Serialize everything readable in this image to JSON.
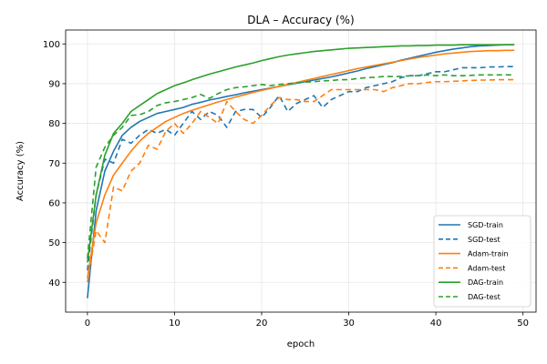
{
  "chart_data": {
    "type": "line",
    "title": "DLA – Accuracy (%)",
    "xlabel": "epoch",
    "ylabel": "Accuracy (%)",
    "xlim": [
      -2.5,
      51.5
    ],
    "ylim": [
      32.5,
      103.5
    ],
    "xticks": [
      0,
      10,
      20,
      30,
      40,
      50
    ],
    "yticks": [
      40,
      50,
      60,
      70,
      80,
      90,
      100
    ],
    "grid": true,
    "legend_position": "lower-right",
    "x": [
      0,
      1,
      2,
      3,
      4,
      5,
      6,
      7,
      8,
      9,
      10,
      11,
      12,
      13,
      14,
      15,
      16,
      17,
      18,
      19,
      20,
      21,
      22,
      23,
      24,
      25,
      26,
      27,
      28,
      29,
      30,
      31,
      32,
      33,
      34,
      35,
      36,
      37,
      38,
      39,
      40,
      41,
      42,
      43,
      44,
      45,
      46,
      47,
      48,
      49
    ],
    "series": [
      {
        "name": "SGD-train",
        "color": "#1f77b4",
        "dash": "solid",
        "values": [
          36,
          58,
          68,
          73,
          77,
          79,
          80.5,
          81.5,
          82.5,
          83,
          83.5,
          84,
          84.8,
          85.3,
          85.9,
          86.3,
          86.8,
          87.2,
          87.7,
          88.1,
          88.5,
          88.9,
          89.3,
          89.7,
          90.1,
          90.5,
          90.9,
          91.3,
          91.7,
          92.2,
          92.7,
          93.2,
          93.8,
          94.3,
          94.8,
          95.3,
          95.9,
          96.4,
          96.9,
          97.4,
          97.9,
          98.3,
          98.7,
          99,
          99.3,
          99.5,
          99.6,
          99.7,
          99.8,
          99.8
        ]
      },
      {
        "name": "SGD-test",
        "color": "#1f77b4",
        "dash": "6,4",
        "values": [
          43,
          62,
          71,
          70,
          76,
          75,
          77,
          78.5,
          77.5,
          78.5,
          77,
          80,
          83,
          81,
          83,
          82,
          79,
          83,
          83.5,
          83.5,
          81.5,
          84,
          87,
          83,
          85,
          86,
          87,
          84,
          86,
          87,
          88,
          88,
          89,
          89.5,
          90,
          90.5,
          91.5,
          92,
          92,
          92.5,
          93,
          93,
          93.5,
          94,
          94,
          94,
          94.2,
          94.2,
          94.3,
          94.3
        ]
      },
      {
        "name": "Adam-train",
        "color": "#ff7f0e",
        "dash": "solid",
        "values": [
          41,
          55,
          62,
          67,
          70,
          73,
          75.5,
          77.5,
          79,
          80.5,
          81.5,
          82.5,
          83.3,
          84,
          84.7,
          85.4,
          86,
          86.6,
          87.2,
          87.8,
          88.3,
          88.8,
          89.3,
          89.8,
          90.3,
          90.8,
          91.3,
          91.8,
          92.3,
          92.8,
          93.3,
          93.8,
          94.2,
          94.6,
          95,
          95.4,
          95.8,
          96.2,
          96.6,
          96.9,
          97.2,
          97.5,
          97.7,
          97.9,
          98.1,
          98.2,
          98.3,
          98.3,
          98.4,
          98.4
        ]
      },
      {
        "name": "Adam-test",
        "color": "#ff7f0e",
        "dash": "6,4",
        "values": [
          40,
          53,
          50,
          64,
          63,
          68,
          70,
          74.5,
          73.5,
          78,
          80,
          77.5,
          80,
          83,
          81.5,
          80,
          85.5,
          83,
          81,
          80,
          82,
          84.5,
          86.5,
          86,
          86,
          85.5,
          85.5,
          87,
          88.5,
          88.5,
          88.5,
          88.5,
          88.5,
          88.5,
          88,
          89,
          89.5,
          90,
          90,
          90.3,
          90.5,
          90.5,
          90.6,
          90.7,
          90.8,
          90.9,
          90.9,
          91,
          91,
          91
        ]
      },
      {
        "name": "DAG-train",
        "color": "#2ca02c",
        "dash": "solid",
        "values": [
          45,
          62,
          72,
          77.5,
          80,
          83,
          84.5,
          86,
          87.5,
          88.5,
          89.5,
          90.2,
          91,
          91.7,
          92.4,
          93,
          93.6,
          94.2,
          94.7,
          95.2,
          95.8,
          96.3,
          96.8,
          97.2,
          97.5,
          97.8,
          98.1,
          98.3,
          98.5,
          98.7,
          98.9,
          99,
          99.1,
          99.2,
          99.3,
          99.4,
          99.5,
          99.5,
          99.6,
          99.6,
          99.7,
          99.7,
          99.7,
          99.8,
          99.8,
          99.8,
          99.8,
          99.8,
          99.8,
          99.8
        ]
      },
      {
        "name": "DAG-test",
        "color": "#2ca02c",
        "dash": "6,4",
        "values": [
          46,
          69,
          74,
          77,
          79,
          82,
          82.2,
          83,
          84.5,
          85.2,
          85.5,
          86,
          86.5,
          87.3,
          86.3,
          87.5,
          88.5,
          89,
          89.2,
          89.5,
          89.8,
          89.5,
          89.8,
          90,
          90.2,
          90.4,
          90.5,
          90.7,
          90.8,
          91,
          91,
          91.3,
          91.5,
          91.6,
          91.8,
          91.8,
          91.8,
          92,
          92,
          92.2,
          92,
          92.2,
          92,
          92,
          92.1,
          92.2,
          92.2,
          92.2,
          92.2,
          92.2
        ]
      }
    ]
  }
}
